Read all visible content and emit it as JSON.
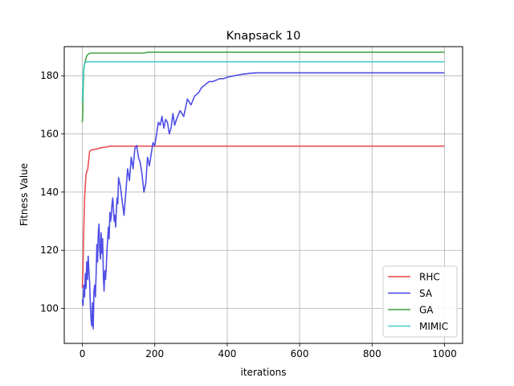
{
  "chart_data": {
    "type": "line",
    "title": "Knapsack 10",
    "xlabel": "iterations",
    "ylabel": "Fitness Value",
    "xlim": [
      -50,
      1050
    ],
    "ylim": [
      88,
      190
    ],
    "xticks": [
      0,
      200,
      400,
      600,
      800,
      1000
    ],
    "yticks": [
      100,
      120,
      140,
      160,
      180
    ],
    "grid": true,
    "legend_position": "lower-right",
    "series": [
      {
        "name": "RHC",
        "color": "#e8474a",
        "x": [
          0,
          1,
          2,
          3,
          4,
          5,
          6,
          8,
          10,
          12,
          15,
          20,
          25,
          30,
          40,
          50,
          60,
          70,
          80,
          100,
          150,
          200,
          400,
          600,
          800,
          1000
        ],
        "y": [
          107,
          111,
          115,
          122,
          127,
          132,
          138,
          142,
          146,
          147,
          148,
          154,
          154.5,
          154.6,
          154.8,
          155.2,
          155.4,
          155.6,
          155.8,
          155.8,
          155.8,
          155.8,
          155.8,
          155.8,
          155.8,
          155.8
        ]
      },
      {
        "name": "SA",
        "color": "#4545e5",
        "x": [
          0,
          2,
          4,
          6,
          8,
          10,
          12,
          14,
          16,
          18,
          20,
          22,
          24,
          26,
          28,
          30,
          32,
          34,
          36,
          38,
          40,
          42,
          44,
          46,
          48,
          50,
          52,
          54,
          56,
          58,
          60,
          62,
          64,
          66,
          68,
          70,
          72,
          74,
          76,
          78,
          80,
          82,
          84,
          86,
          88,
          90,
          92,
          94,
          96,
          98,
          100,
          105,
          110,
          115,
          120,
          125,
          130,
          135,
          140,
          145,
          150,
          155,
          160,
          165,
          170,
          175,
          180,
          185,
          190,
          195,
          200,
          205,
          210,
          215,
          220,
          225,
          230,
          235,
          240,
          245,
          250,
          255,
          260,
          270,
          280,
          290,
          300,
          310,
          320,
          330,
          340,
          350,
          360,
          370,
          380,
          390,
          400,
          420,
          440,
          460,
          480,
          500,
          600,
          700,
          800,
          900,
          1000
        ],
        "y": [
          103,
          101,
          108,
          104,
          112,
          107,
          116,
          110,
          118,
          113,
          109,
          101,
          96,
          94,
          102,
          93,
          106,
          108,
          104,
          112,
          122,
          116,
          126,
          129,
          120,
          117,
          126,
          119,
          124,
          111,
          106,
          113,
          110,
          114,
          120,
          124,
          128,
          124,
          133,
          130,
          132,
          136,
          138,
          134,
          130,
          132,
          128,
          134,
          138,
          136,
          145,
          142,
          137,
          132,
          140,
          148,
          144,
          152,
          148,
          155,
          156,
          152,
          150,
          146,
          140,
          143,
          152,
          149,
          153,
          157,
          156,
          160,
          164,
          163,
          166,
          162,
          165,
          164,
          160,
          162,
          167,
          163,
          165,
          168,
          166,
          172,
          170,
          173,
          174,
          176,
          177,
          178,
          178,
          178.5,
          179,
          179,
          179.5,
          180,
          180.5,
          180.8,
          181,
          181,
          181,
          181,
          181,
          181,
          181
        ]
      },
      {
        "name": "GA",
        "color": "#3ea13e",
        "x": [
          0,
          1,
          2,
          3,
          4,
          6,
          8,
          10,
          12,
          15,
          20,
          25,
          30,
          50,
          100,
          150,
          170,
          180,
          200,
          400,
          600,
          800,
          1000
        ],
        "y": [
          164,
          167,
          174,
          179,
          182,
          184,
          185,
          186,
          186.8,
          187.3,
          187.7,
          187.8,
          187.8,
          187.8,
          187.8,
          187.8,
          187.8,
          188.1,
          188.1,
          188.1,
          188.1,
          188.1,
          188.1
        ]
      },
      {
        "name": "MIMIC",
        "color": "#44cdcd",
        "x": [
          0,
          1,
          2,
          3,
          4,
          6,
          8,
          10,
          15,
          20,
          100,
          200,
          400,
          600,
          800,
          1000
        ],
        "y": [
          171,
          176,
          179,
          181,
          183,
          184,
          184.5,
          184.8,
          184.8,
          184.8,
          184.8,
          184.8,
          184.8,
          184.8,
          184.8,
          184.8
        ]
      }
    ]
  }
}
